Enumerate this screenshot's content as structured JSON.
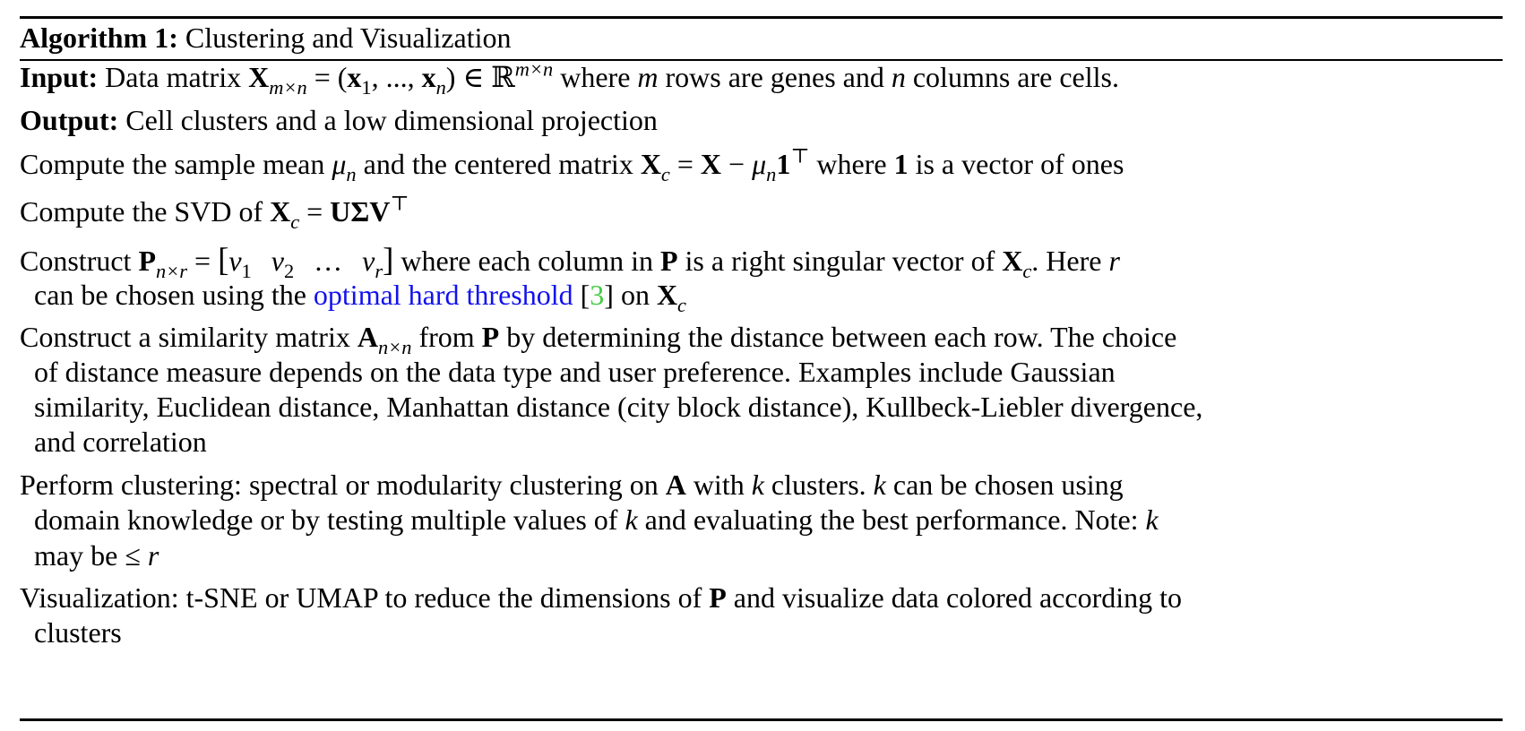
{
  "algorithm": {
    "label": "Algorithm 1:",
    "title": "Clustering and Visualization"
  },
  "input": {
    "label": "Input:",
    "text_pre": "Data matrix",
    "text_post": "where",
    "m_var": "m",
    "rows_text": "rows are genes and",
    "n_var": "n",
    "cols_text": "columns are cells."
  },
  "output": {
    "label": "Output:",
    "text": "Cell clusters and a low dimensional projection"
  },
  "steps": {
    "mean": {
      "pre": "Compute the sample mean",
      "mid": "and the centered matrix",
      "post_where": "where",
      "one": "1",
      "post": "is a vector of ones"
    },
    "svd": {
      "pre": "Compute the SVD of"
    },
    "construct_p": {
      "pre": "Construct",
      "mid": "where each column in",
      "p": "P",
      "mid2": "is a right singular vector of",
      "here": ". Here",
      "r": "r",
      "line2_pre": "can be chosen using the",
      "link": "optimal hard threshold",
      "cite": "3",
      "on": "on"
    },
    "construct_a": {
      "line1_pre": "Construct a similarity matrix",
      "line1_from": "from",
      "line1_p": "P",
      "line1_post": "by determining the distance between each row. The choice",
      "line2": "of distance measure depends on the data type and user preference. Examples include Gaussian",
      "line3": "similarity, Euclidean distance, Manhattan distance (city block distance), Kullbeck-Liebler divergence,",
      "line4": "and correlation"
    },
    "clustering": {
      "line1_pre": "Perform clustering: spectral or modularity clustering on",
      "a": "A",
      "line1_with": "with",
      "k": "k",
      "line1_mid": "clusters.",
      "line1_post": "can be chosen using",
      "line2_pre": "domain knowledge or by testing multiple values of",
      "line2_post": "and evaluating the best performance. Note:",
      "line3_pre": "may be ≤",
      "r": "r"
    },
    "visualization": {
      "line1_pre": "Visualization: t-SNE or UMAP to reduce the dimensions of",
      "p": "P",
      "line1_post": "and visualize data colored according to",
      "line2": "clusters"
    }
  }
}
